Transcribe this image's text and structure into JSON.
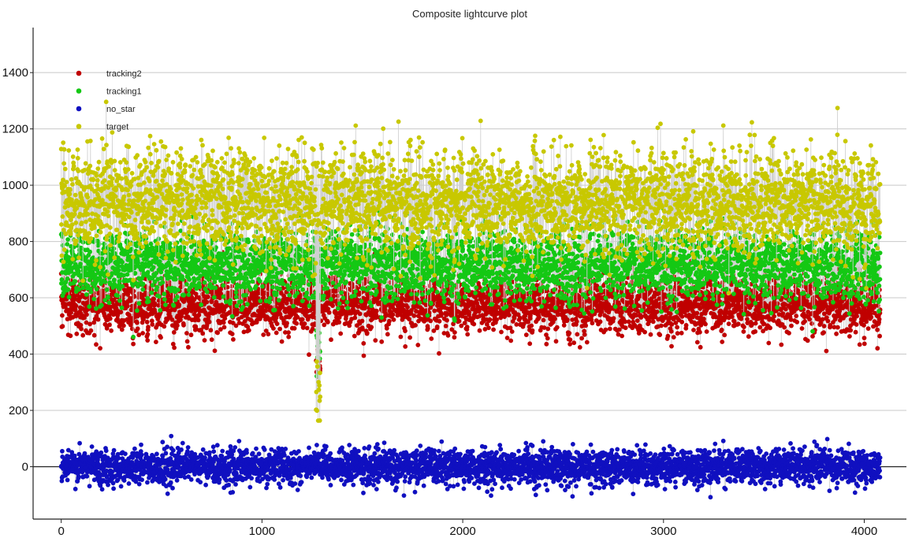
{
  "chart_data": {
    "type": "scatter",
    "title": "Composite lightcurve plot",
    "xlabel": "",
    "ylabel": "",
    "xlim": [
      -140,
      4210
    ],
    "ylim": [
      -175,
      1560
    ],
    "x_ticks": [
      0,
      1000,
      2000,
      3000,
      4000
    ],
    "y_ticks": [
      0,
      200,
      400,
      600,
      800,
      1000,
      1200,
      1400
    ],
    "grid": {
      "x": false,
      "y": true
    },
    "connecting_lines": true,
    "legend": {
      "placement": "top-left",
      "entries": [
        "tracking2",
        "tracking1",
        "no_star",
        "target"
      ]
    },
    "series": [
      {
        "name": "tracking2",
        "color": "#c00000",
        "n_points": 4080,
        "x_start": 0,
        "x_end": 4079,
        "baseline": 580,
        "scatter": 55,
        "notes_dip": {
          "x": [
            1270,
            1290
          ],
          "y": [
            310,
            420
          ]
        }
      },
      {
        "name": "tracking1",
        "color": "#14c814",
        "n_points": 4080,
        "x_start": 0,
        "x_end": 4079,
        "baseline": 720,
        "scatter": 65,
        "notes_dip": {
          "x": [
            1270,
            1290
          ],
          "y": [
            300,
            500
          ]
        }
      },
      {
        "name": "no_star",
        "color": "#1010c0",
        "n_points": 4080,
        "x_start": 0,
        "x_end": 4079,
        "baseline": 0,
        "scatter": 30
      },
      {
        "name": "target",
        "color": "#c8c800",
        "n_points": 4080,
        "x_start": 0,
        "x_end": 4079,
        "baseline": 940,
        "scatter": 95,
        "notes_dip": {
          "x": [
            1270,
            1290
          ],
          "y": [
            150,
            380
          ]
        }
      }
    ]
  }
}
